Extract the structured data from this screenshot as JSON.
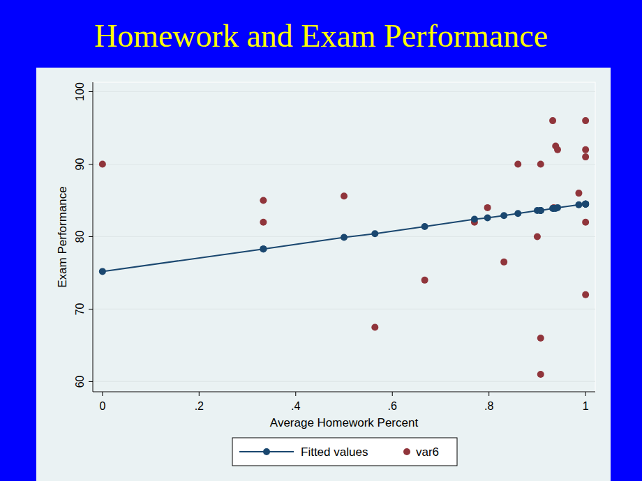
{
  "chart_data": {
    "type": "scatter",
    "title": "Homework and Exam Performance",
    "x_label": "Average Homework Percent",
    "y_label": "Exam Performance",
    "xlim": [
      -0.02,
      1.02
    ],
    "ylim": [
      58.6,
      101.3
    ],
    "xticks": [
      0,
      {
        "value": 0.2,
        "label": ".2"
      },
      {
        "value": 0.4,
        "label": ".4"
      },
      {
        "value": 0.6,
        "label": ".6"
      },
      {
        "value": 0.8,
        "label": ".8"
      },
      1
    ],
    "yticks": [
      60,
      70,
      80,
      90,
      100
    ],
    "grid": true,
    "legend": "bottom",
    "x": [
      0,
      0.333,
      0.333,
      0.5,
      0.564,
      0.667,
      0.77,
      0.797,
      0.831,
      0.86,
      0.9,
      0.907,
      0.907,
      0.907,
      0.932,
      0.934,
      0.938,
      0.942,
      0.986,
      1,
      1,
      1,
      1,
      1
    ],
    "series": [
      {
        "name": "Fitted values",
        "type": "line",
        "marker": "circle",
        "line_style": "solid",
        "color": "#1a476f",
        "values": [
          75.2,
          78.3,
          78.3,
          79.9,
          80.4,
          81.4,
          82.4,
          82.6,
          82.9,
          83.2,
          83.6,
          83.6,
          83.6,
          83.6,
          83.9,
          83.9,
          83.9,
          84.0,
          84.4,
          84.5,
          84.5,
          84.5,
          84.5,
          84.5
        ]
      },
      {
        "name": "var6",
        "type": "scatter",
        "marker": "circle",
        "color": "#90353b",
        "values": [
          90,
          85,
          82,
          85.6,
          67.5,
          74,
          82,
          84,
          76.5,
          90,
          80,
          90,
          66,
          61,
          96,
          84,
          92.5,
          92,
          86,
          96,
          92,
          91,
          82,
          72
        ]
      }
    ]
  }
}
